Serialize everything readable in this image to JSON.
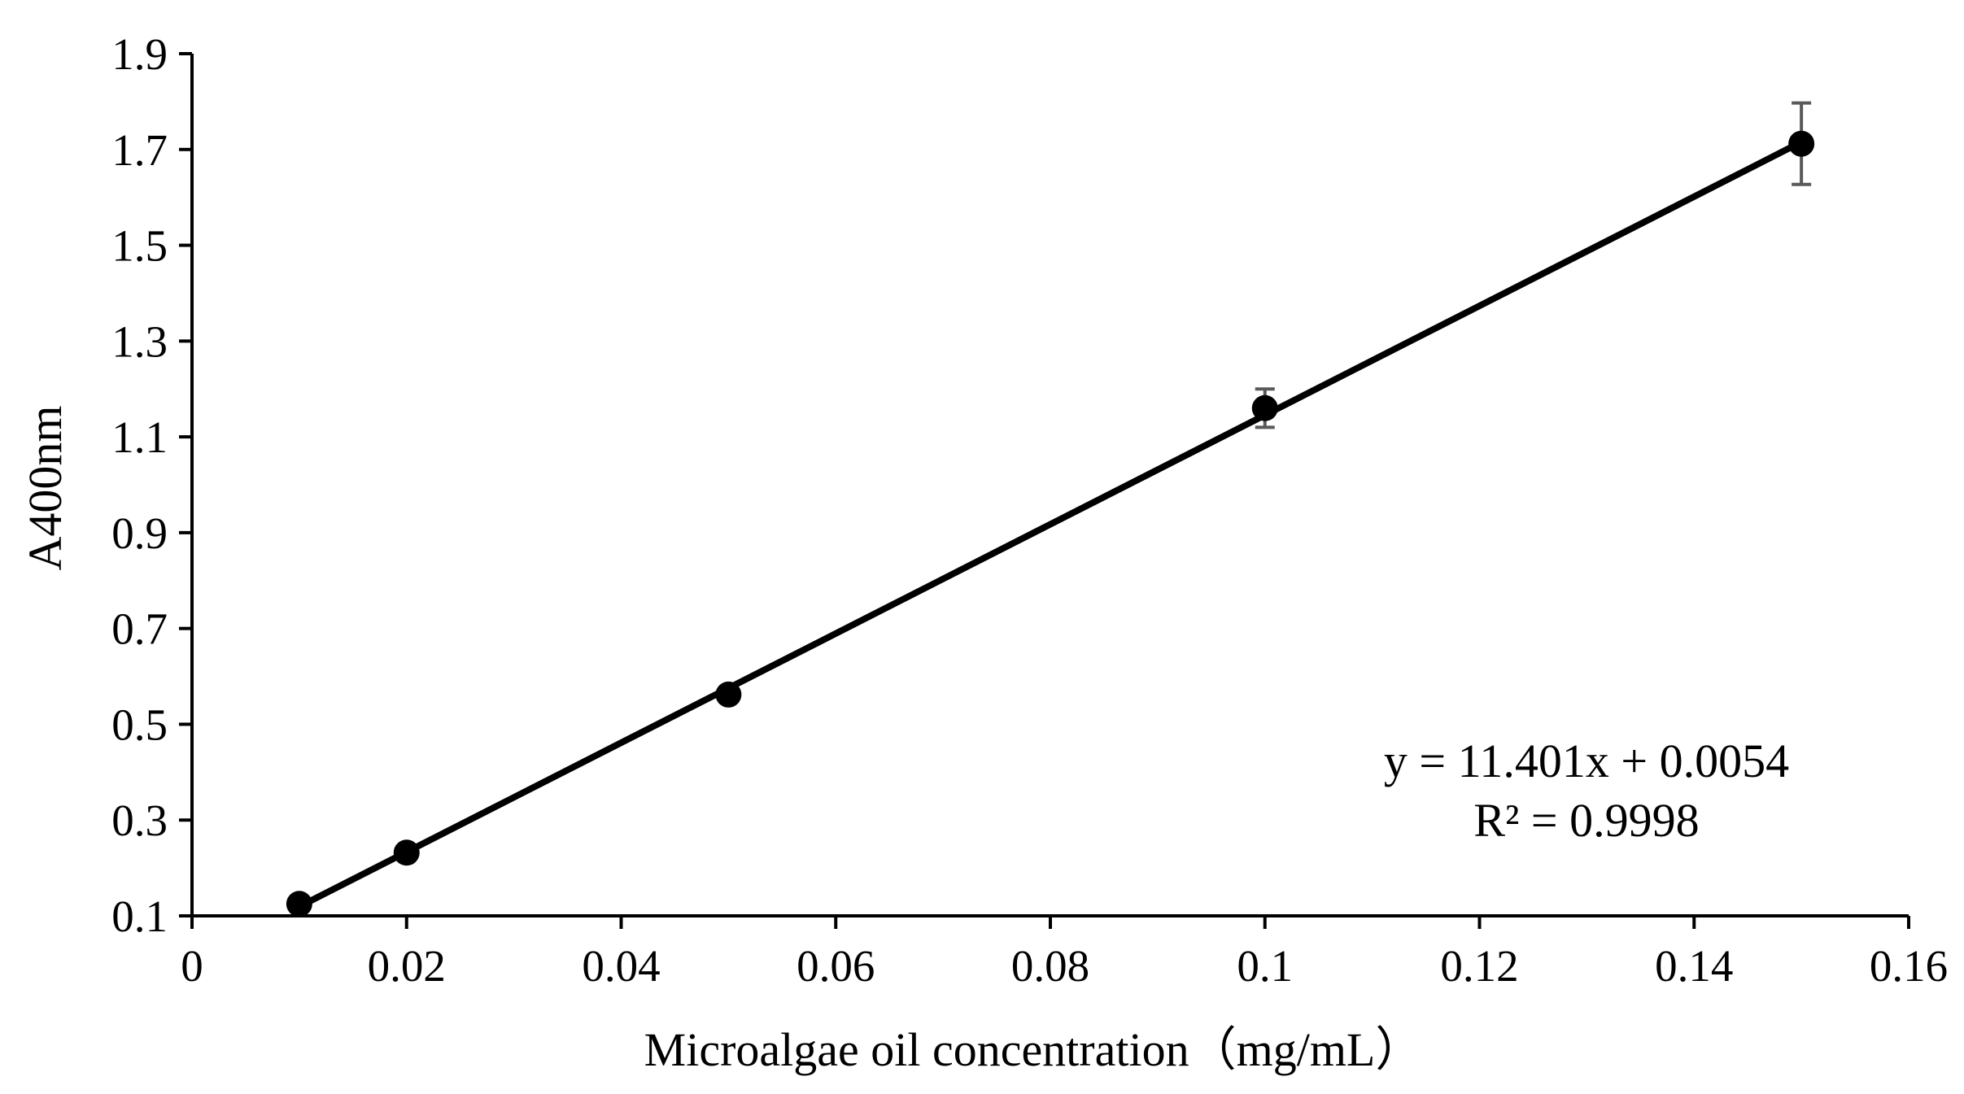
{
  "chart_data": {
    "type": "scatter",
    "xlabel": "Microalgae oil concentration（mg/mL）",
    "ylabel": "A400nm",
    "xlim": [
      0,
      0.16
    ],
    "ylim": [
      0.1,
      1.9
    ],
    "x_ticks": [
      "0",
      "0.02",
      "0.04",
      "0.06",
      "0.08",
      "0.1",
      "0.12",
      "0.14",
      "0.16"
    ],
    "y_ticks": [
      "0.1",
      "0.3",
      "0.5",
      "0.7",
      "0.9",
      "1.1",
      "1.3",
      "1.5",
      "1.7",
      "1.9"
    ],
    "points": [
      {
        "x": 0.01,
        "y": 0.125,
        "err": 0.0
      },
      {
        "x": 0.02,
        "y": 0.232,
        "err": 0.0
      },
      {
        "x": 0.05,
        "y": 0.562,
        "err": 0.0
      },
      {
        "x": 0.1,
        "y": 1.16,
        "err": 0.04
      },
      {
        "x": 0.15,
        "y": 1.712,
        "err": 0.085
      }
    ],
    "trendline": {
      "slope": 11.401,
      "intercept": 0.0054,
      "x_start": 0.01,
      "x_end": 0.15
    },
    "equation": "y = 11.401x + 0.0054",
    "r_squared": "R² = 0.9998",
    "colors": {
      "marker": "#000000",
      "line": "#000000",
      "error_bar": "#595959"
    }
  }
}
